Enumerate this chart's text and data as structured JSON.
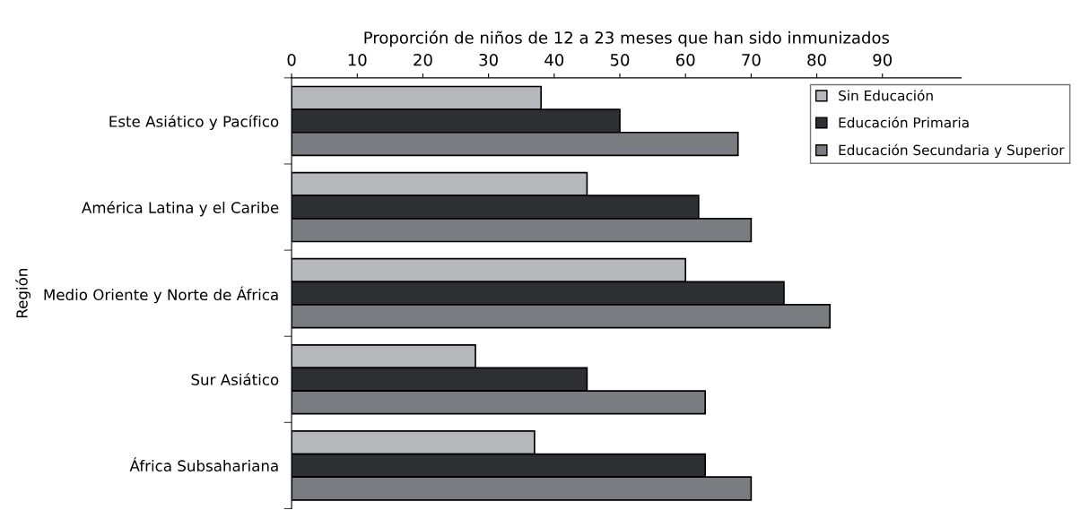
{
  "chart_data": {
    "type": "bar",
    "orientation": "horizontal",
    "xlabel": "Proporción de niños de 12 a 23 meses que han sido inmunizados",
    "ylabel": "Región",
    "categories": [
      "Este Asiático y Pacífico",
      "América Latina y el Caribe",
      "Medio Oriente y Norte de África",
      "Sur Asiático",
      "África Subsahariana"
    ],
    "series": [
      {
        "name": "Sin Educación",
        "color": "#b7b8bb",
        "values": [
          38,
          45,
          60,
          28,
          37
        ]
      },
      {
        "name": "Educación Primaria",
        "color": "#2e2f33",
        "values": [
          50,
          62,
          75,
          45,
          63
        ]
      },
      {
        "name": "Educación Secundaria y Superior",
        "color": "#7b7c81",
        "values": [
          68,
          70,
          82,
          63,
          70
        ]
      }
    ],
    "xlim": [
      0,
      102
    ],
    "xticks": [
      0,
      10,
      20,
      30,
      40,
      50,
      60,
      70,
      80,
      90
    ],
    "grid": false,
    "legend": "top right"
  }
}
